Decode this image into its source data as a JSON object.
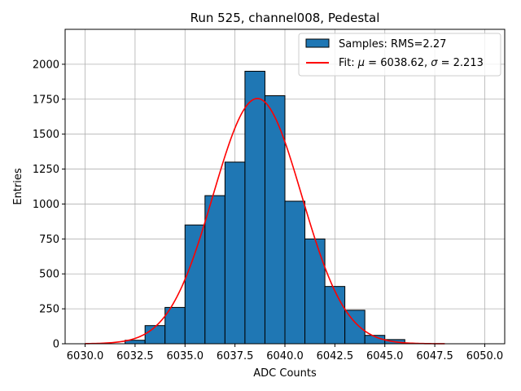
{
  "chart_data": {
    "type": "bar",
    "title": "Run 525, channel008, Pedestal",
    "xlabel": "ADC Counts",
    "ylabel": "Entries",
    "xlim": [
      6029.0,
      6051.0
    ],
    "ylim": [
      0,
      2250
    ],
    "xticks": [
      "6030.0",
      "6032.5",
      "6035.0",
      "6037.5",
      "6040.0",
      "6042.5",
      "6045.0",
      "6047.5",
      "6050.0"
    ],
    "xtick_values": [
      6030.0,
      6032.5,
      6035.0,
      6037.5,
      6040.0,
      6042.5,
      6045.0,
      6047.5,
      6050.0
    ],
    "yticks": [
      "0",
      "250",
      "500",
      "750",
      "1000",
      "1250",
      "1500",
      "1750",
      "2000"
    ],
    "ytick_values": [
      0,
      250,
      500,
      750,
      1000,
      1250,
      1500,
      1750,
      2000
    ],
    "grid": true,
    "legend_position": "top-right",
    "histogram": {
      "name": "Samples: RMS=2.27",
      "color": "#1f77b4",
      "edgecolor": "#000000",
      "bin_edges": [
        6032,
        6033,
        6034,
        6035,
        6036,
        6037,
        6038,
        6039,
        6040,
        6041,
        6042,
        6043,
        6044,
        6045,
        6046
      ],
      "counts": [
        25,
        130,
        260,
        850,
        1060,
        1300,
        1950,
        1775,
        1020,
        750,
        410,
        240,
        60,
        30
      ]
    },
    "fit": {
      "name_prefix": "Fit: ",
      "name_mu": "μ",
      "name_mid": " = 6038.62, ",
      "name_sigma": "σ",
      "name_suffix": " = 2.213",
      "color": "#ff0000",
      "mu": 6038.62,
      "sigma": 2.213,
      "amplitude": 1755,
      "x_range": [
        6030.0,
        6048.0
      ]
    }
  }
}
